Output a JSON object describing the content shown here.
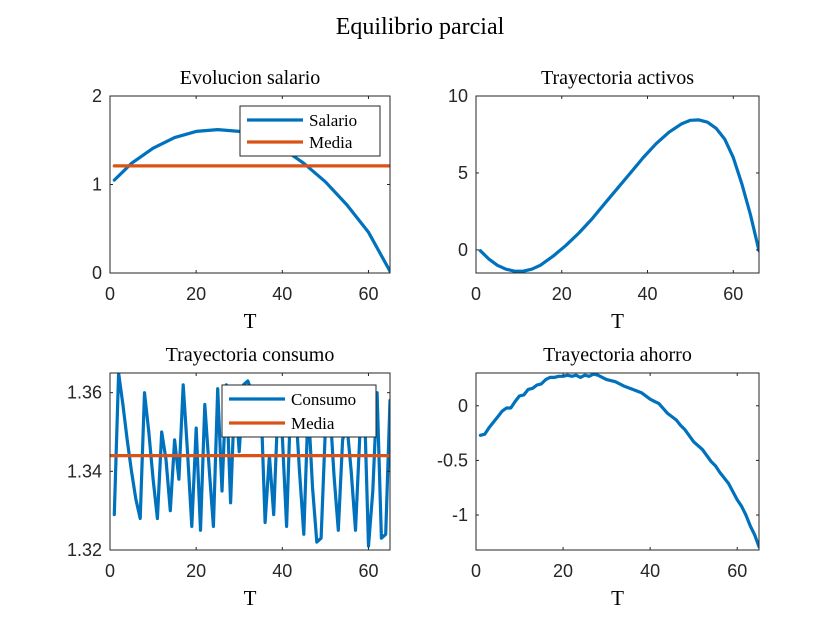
{
  "figure": {
    "title": "Equilibrio parcial"
  },
  "colors": {
    "blue": "#0072BD",
    "orange": "#D95319",
    "axis": "#262626"
  },
  "chart_data": [
    {
      "id": "salario",
      "type": "line",
      "title": "Evolucion salario",
      "xlabel": "T",
      "ylabel": "",
      "xlim": [
        0,
        65
      ],
      "ylim": [
        0,
        2
      ],
      "xticks": [
        0,
        20,
        40,
        60
      ],
      "yticks": [
        0,
        1,
        2
      ],
      "ytick_labels": [
        "0",
        "1",
        "2"
      ],
      "grid": false,
      "legend": {
        "position": "top-right",
        "entries": [
          "Salario",
          "Media"
        ]
      },
      "series": [
        {
          "name": "Salario",
          "color": "#0072BD",
          "x": [
            1,
            5,
            10,
            15,
            20,
            25,
            30,
            35,
            40,
            45,
            50,
            55,
            60,
            65
          ],
          "y": [
            1.05,
            1.24,
            1.41,
            1.53,
            1.6,
            1.62,
            1.6,
            1.53,
            1.41,
            1.24,
            1.03,
            0.77,
            0.46,
            0.02
          ]
        },
        {
          "name": "Media",
          "color": "#D95319",
          "x": [
            1,
            65
          ],
          "y": [
            1.21,
            1.21
          ]
        }
      ]
    },
    {
      "id": "activos",
      "type": "line",
      "title": "Trayectoria activos",
      "xlabel": "T",
      "ylabel": "",
      "xlim": [
        0,
        66
      ],
      "ylim": [
        -1.5,
        10
      ],
      "xticks": [
        0,
        20,
        40,
        60
      ],
      "yticks": [
        0,
        5,
        10
      ],
      "ytick_labels": [
        "0",
        "5",
        "10"
      ],
      "grid": false,
      "series": [
        {
          "name": "",
          "color": "#0072BD",
          "x": [
            1,
            3,
            5,
            7,
            9,
            11,
            13,
            15,
            18,
            21,
            24,
            27,
            30,
            33,
            36,
            39,
            42,
            45,
            48,
            50,
            52,
            54,
            56,
            58,
            60,
            62,
            64,
            66
          ],
          "y": [
            -0.05,
            -0.6,
            -1.0,
            -1.25,
            -1.38,
            -1.38,
            -1.25,
            -1.0,
            -0.4,
            0.3,
            1.1,
            2.0,
            3.0,
            4.0,
            5.0,
            6.0,
            6.9,
            7.65,
            8.2,
            8.42,
            8.45,
            8.3,
            7.9,
            7.2,
            6.0,
            4.3,
            2.3,
            -0.05
          ]
        }
      ]
    },
    {
      "id": "consumo",
      "type": "line",
      "title": "Trayectoria consumo",
      "xlabel": "T",
      "ylabel": "",
      "xlim": [
        0,
        65
      ],
      "ylim": [
        1.32,
        1.365
      ],
      "xticks": [
        0,
        20,
        40,
        60
      ],
      "yticks": [
        1.32,
        1.34,
        1.36
      ],
      "ytick_labels": [
        "1.32",
        "1.34",
        "1.36"
      ],
      "grid": false,
      "legend": {
        "position": "top-right",
        "entries": [
          "Consumo",
          "Media"
        ]
      },
      "series": [
        {
          "name": "Consumo",
          "color": "#0072BD",
          "x": [
            1,
            2,
            3,
            4,
            5,
            6,
            7,
            8,
            9,
            10,
            11,
            12,
            13,
            14,
            15,
            16,
            17,
            18,
            19,
            20,
            21,
            22,
            23,
            24,
            25,
            26,
            27,
            28,
            29,
            30,
            31,
            32,
            33,
            34,
            35,
            36,
            37,
            38,
            39,
            40,
            41,
            42,
            43,
            44,
            45,
            46,
            47,
            48,
            49,
            50,
            51,
            52,
            53,
            54,
            55,
            56,
            57,
            58,
            59,
            60,
            61,
            62,
            63,
            64,
            65
          ],
          "y": [
            1.329,
            1.365,
            1.357,
            1.348,
            1.34,
            1.333,
            1.328,
            1.36,
            1.35,
            1.338,
            1.328,
            1.35,
            1.343,
            1.33,
            1.348,
            1.338,
            1.362,
            1.345,
            1.326,
            1.351,
            1.325,
            1.357,
            1.341,
            1.326,
            1.361,
            1.335,
            1.362,
            1.332,
            1.361,
            1.345,
            1.362,
            1.363,
            1.36,
            1.361,
            1.359,
            1.327,
            1.344,
            1.329,
            1.357,
            1.349,
            1.326,
            1.36,
            1.358,
            1.34,
            1.324,
            1.357,
            1.336,
            1.322,
            1.323,
            1.351,
            1.357,
            1.339,
            1.325,
            1.348,
            1.352,
            1.34,
            1.325,
            1.349,
            1.359,
            1.321,
            1.335,
            1.36,
            1.323,
            1.324,
            1.358
          ]
        },
        {
          "name": "Media",
          "color": "#D95319",
          "x": [
            0,
            65
          ],
          "y": [
            1.344,
            1.344
          ]
        }
      ]
    },
    {
      "id": "ahorro",
      "type": "line",
      "title": "Trayectoria ahorro",
      "xlabel": "T",
      "ylabel": "",
      "xlim": [
        0,
        65
      ],
      "ylim": [
        -1.32,
        0.3
      ],
      "xticks": [
        0,
        20,
        40,
        60
      ],
      "yticks": [
        -1,
        -0.5,
        0
      ],
      "ytick_labels": [
        "-1",
        "-0.5",
        "0"
      ],
      "grid": false,
      "series": [
        {
          "name": "",
          "color": "#0072BD",
          "x": [
            1,
            2,
            3,
            4,
            5,
            6,
            7,
            8,
            9,
            10,
            11,
            12,
            13,
            14,
            15,
            16,
            17,
            18,
            19,
            20,
            21,
            22,
            23,
            24,
            25,
            26,
            27,
            28,
            30,
            32,
            34,
            36,
            38,
            40,
            41,
            42,
            44,
            46,
            47,
            48,
            50,
            52,
            54,
            55,
            56,
            58,
            60,
            61,
            62,
            63,
            64,
            65
          ],
          "y": [
            -0.27,
            -0.26,
            -0.2,
            -0.15,
            -0.1,
            -0.05,
            -0.02,
            -0.02,
            0.04,
            0.09,
            0.1,
            0.15,
            0.16,
            0.19,
            0.2,
            0.24,
            0.26,
            0.26,
            0.27,
            0.27,
            0.28,
            0.27,
            0.28,
            0.26,
            0.28,
            0.27,
            0.29,
            0.28,
            0.24,
            0.22,
            0.18,
            0.15,
            0.12,
            0.06,
            0.04,
            0.02,
            -0.07,
            -0.13,
            -0.18,
            -0.22,
            -0.33,
            -0.4,
            -0.51,
            -0.55,
            -0.61,
            -0.71,
            -0.86,
            -0.92,
            -1.0,
            -1.1,
            -1.18,
            -1.29
          ]
        }
      ]
    }
  ]
}
